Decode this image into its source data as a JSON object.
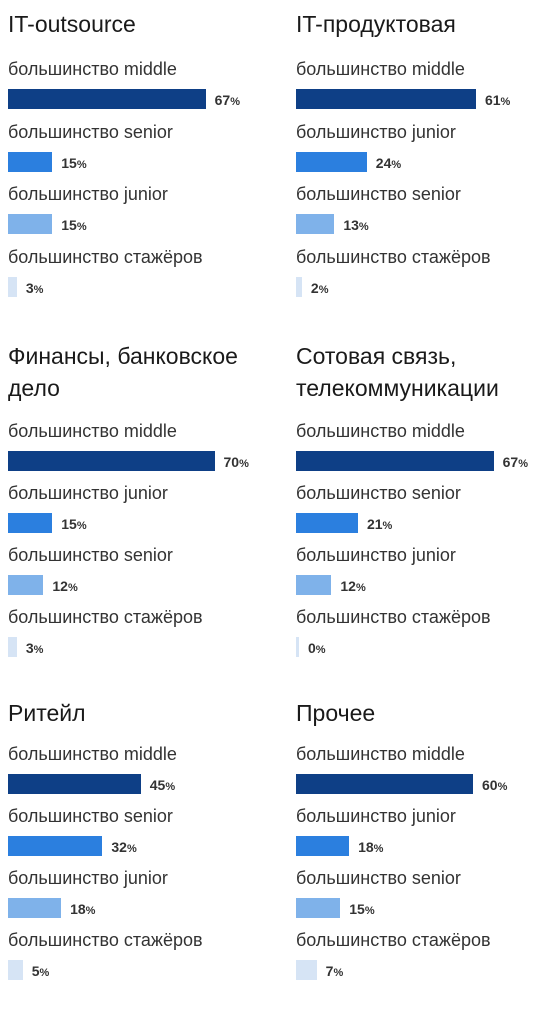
{
  "colors": {
    "middle": "#0e3f86",
    "senior": "#2b7fdf",
    "junior": "#7fb2ea",
    "intern": "#d6e4f5"
  },
  "chart_data": [
    {
      "type": "bar",
      "title": "IT-outsource",
      "categories": [
        "большинство middle",
        "большинство senior",
        "большинство junior",
        "большинство стажёров"
      ],
      "levels": [
        "middle",
        "senior",
        "junior",
        "intern"
      ],
      "values": [
        67,
        15,
        15,
        3
      ],
      "value_labels": [
        "67",
        "15",
        "15",
        "3"
      ],
      "unit": "%"
    },
    {
      "type": "bar",
      "title": "IT-продуктовая",
      "categories": [
        "большинство middle",
        "большинство junior",
        "большинство senior",
        "большинство стажёров"
      ],
      "levels": [
        "middle",
        "senior",
        "junior",
        "intern"
      ],
      "values": [
        61,
        24,
        13,
        2
      ],
      "value_labels": [
        "61",
        "24",
        "13",
        "2"
      ],
      "unit": "%"
    },
    {
      "type": "bar",
      "title": "Финансы, банковское дело",
      "categories": [
        "большинство middle",
        "большинство junior",
        "большинство senior",
        "большинство стажёров"
      ],
      "levels": [
        "middle",
        "senior",
        "junior",
        "intern"
      ],
      "values": [
        70,
        15,
        12,
        3
      ],
      "value_labels": [
        "70",
        "15",
        "12",
        "3"
      ],
      "unit": "%"
    },
    {
      "type": "bar",
      "title": "Сотовая связь, телекоммуникации",
      "categories": [
        "большинство middle",
        "большинство senior",
        "большинство junior",
        "большинство стажёров"
      ],
      "levels": [
        "middle",
        "senior",
        "junior",
        "intern"
      ],
      "values": [
        67,
        21,
        12,
        0
      ],
      "value_labels": [
        "67",
        "21",
        "12",
        "0"
      ],
      "unit": "%"
    },
    {
      "type": "bar",
      "title": "Ритейл",
      "categories": [
        "большинство middle",
        "большинство senior",
        "большинство junior",
        "большинство стажёров"
      ],
      "levels": [
        "middle",
        "senior",
        "junior",
        "intern"
      ],
      "values": [
        45,
        32,
        18,
        5
      ],
      "value_labels": [
        "45",
        "32",
        "18",
        "5"
      ],
      "unit": "%"
    },
    {
      "type": "bar",
      "title": "Прочее",
      "categories": [
        "большинство middle",
        "большинство junior",
        "большинство senior",
        "большинство стажёров"
      ],
      "levels": [
        "middle",
        "senior",
        "junior",
        "intern"
      ],
      "values": [
        60,
        18,
        15,
        7
      ],
      "value_labels": [
        "60",
        "18",
        "15",
        "7"
      ],
      "unit": "%"
    }
  ]
}
